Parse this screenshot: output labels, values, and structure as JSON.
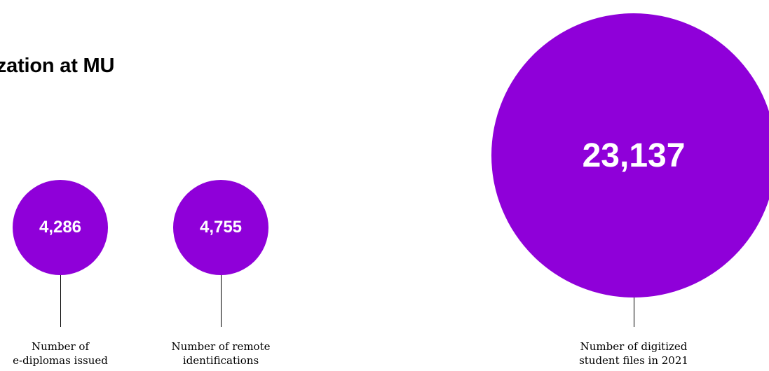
{
  "title": "erization at MU",
  "colors": {
    "bubble": "#8f00d9",
    "value_text": "#ffffff",
    "line": "#000000"
  },
  "chart_data": {
    "type": "bubble",
    "title": "erization at MU",
    "items": [
      {
        "value": 4286,
        "display": "4,286",
        "label_lines": [
          "Number of",
          "e-diplomas issued"
        ]
      },
      {
        "value": 4755,
        "display": "4,755",
        "label_lines": [
          "Number of remote",
          "identifications"
        ]
      },
      {
        "value": 23137,
        "display": "23,137",
        "label_lines": [
          "Number of digitized",
          "student files in 2021"
        ]
      }
    ]
  }
}
